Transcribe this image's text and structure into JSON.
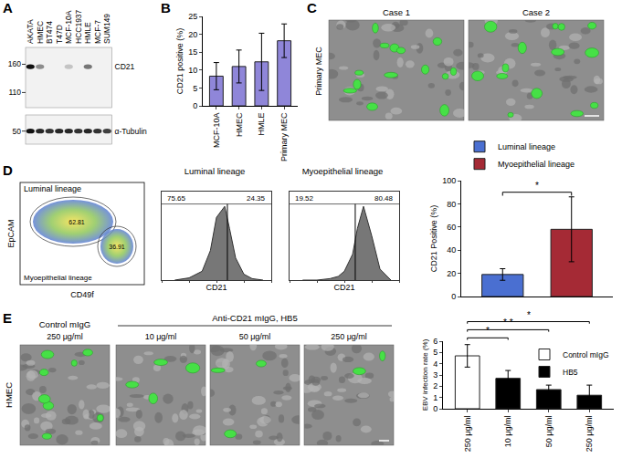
{
  "blot": {
    "panel_label": "A",
    "lanes": [
      "AKATA",
      "HMEC",
      "BT474",
      "T47D",
      "MCF-10A",
      "HCC1937",
      "HMLE",
      "MCF-7",
      "SUM149"
    ],
    "rows": [
      {
        "label": "CD21",
        "markers": [
          160,
          110
        ],
        "kda_range": [
          200,
          90
        ],
        "band_kda": 155,
        "intensity": [
          1,
          0.45,
          0,
          0,
          0.2,
          0,
          0.55,
          0,
          0
        ]
      },
      {
        "label": "α-Tubulin",
        "markers": [
          50
        ],
        "kda_range": [
          62,
          42
        ],
        "band_kda": 50,
        "intensity": [
          1,
          0.9,
          0.85,
          0.9,
          0.9,
          0.85,
          0.9,
          0.85,
          0.8
        ]
      }
    ]
  },
  "images_c": {
    "panel_label": "C",
    "row_label": "Primary MEC",
    "titles": [
      "Case 1",
      "Case 2"
    ]
  },
  "flow_d": {
    "panel_label": "D",
    "xlabel": "CD49f",
    "ylabel": "EpCAM",
    "gates": [
      {
        "label": "Luminal lineage",
        "percent": 62.81
      },
      {
        "label": "Myoepithelial lineage",
        "percent": 36.91
      }
    ]
  },
  "images_e": {
    "panel_label": "E",
    "row_label": "HMEC",
    "control": {
      "title": "Control mIgG",
      "dose": "250 μg/ml"
    },
    "group_title": "Anti-CD21 mIgG, HB5",
    "doses": [
      "10 μg/ml",
      "50 μg/ml",
      "250 μg/ml"
    ]
  },
  "chart_data": [
    {
      "panel_label": "B",
      "type": "bar",
      "categories": [
        "MCF-10A",
        "HMEC",
        "HMLE",
        "Primary MEC"
      ],
      "values": [
        8.3,
        11.0,
        12.3,
        18.2
      ],
      "errors": [
        3.8,
        4.6,
        8.0,
        4.7
      ],
      "color": "#8f86d9",
      "ylabel": "CD21 positive (%)",
      "ylim": [
        0,
        25
      ],
      "yticks": [
        0,
        5,
        10,
        15,
        20,
        25
      ]
    },
    {
      "type": "bar",
      "categories": [
        null,
        null
      ],
      "series": [
        {
          "name": "Luminal lineage",
          "color": "#4a6fd1",
          "values": [
            19,
            null
          ],
          "errors": [
            5,
            null
          ]
        },
        {
          "name": "Myoepithelial lineage",
          "color": "#a52a35",
          "values": [
            null,
            58
          ],
          "errors": [
            null,
            28
          ]
        }
      ],
      "ylabel": "CD21 Positive (%)",
      "ylim": [
        0,
        100
      ],
      "yticks": [
        0,
        20,
        40,
        60,
        80,
        100
      ],
      "significance": [
        {
          "from": 0,
          "to": 1,
          "label": "*"
        }
      ],
      "legend": "top",
      "tick_labels": "y"
    },
    {
      "type": "area",
      "title": "Luminal lineage",
      "xlabel": "CD21",
      "log": "x",
      "x": [
        30,
        100,
        300,
        600,
        1000,
        2000,
        3000,
        5000,
        10000,
        20000,
        50000
      ],
      "values": [
        0,
        3,
        12,
        40,
        85,
        100,
        70,
        30,
        8,
        2,
        0
      ],
      "xlim": [
        10,
        100000
      ],
      "xticks": [
        10,
        100,
        1000,
        10000,
        100000
      ],
      "ylim": [
        0,
        120
      ],
      "tick_labels": false,
      "gate": 2500,
      "gate_percents": [
        75.65,
        24.35
      ],
      "color": "#777777"
    },
    {
      "type": "area",
      "title": "Myoepithelial lineage",
      "xlabel": "CD21",
      "log": "x",
      "x": [
        30,
        100,
        300,
        600,
        1000,
        2000,
        3000,
        5000,
        10000,
        20000,
        50000
      ],
      "values": [
        0,
        0,
        2,
        5,
        12,
        35,
        70,
        100,
        60,
        15,
        0
      ],
      "xlim": [
        10,
        100000
      ],
      "xticks": [
        10,
        100,
        1000,
        10000,
        100000
      ],
      "ylim": [
        0,
        120
      ],
      "tick_labels": false,
      "gate": 2500,
      "gate_percents": [
        19.52,
        80.48
      ],
      "color": "#777777"
    },
    {
      "type": "bar",
      "categories": [
        "250 μg/ml",
        "10 μg/ml",
        "50 μg/ml",
        "250 μg/ml"
      ],
      "series": [
        {
          "name": "Control mIgG",
          "color": "#ffffff",
          "values": [
            4.7,
            null,
            null,
            null
          ],
          "errors": [
            1.0,
            null,
            null,
            null
          ]
        },
        {
          "name": "HB5",
          "color": "#000000",
          "values": [
            null,
            2.7,
            1.7,
            1.2
          ],
          "errors": [
            null,
            0.7,
            0.4,
            0.9
          ]
        }
      ],
      "ylabel": "EBV infection rate (%)",
      "ylim": [
        0,
        6
      ],
      "yticks": [
        0,
        1,
        2,
        3,
        4,
        5,
        6
      ],
      "significance": [
        {
          "from": 0,
          "to": 1,
          "label": "*"
        },
        {
          "from": 0,
          "to": 2,
          "label": "* *"
        },
        {
          "from": 0,
          "to": 3,
          "label": "*"
        }
      ],
      "legend": "right"
    }
  ]
}
